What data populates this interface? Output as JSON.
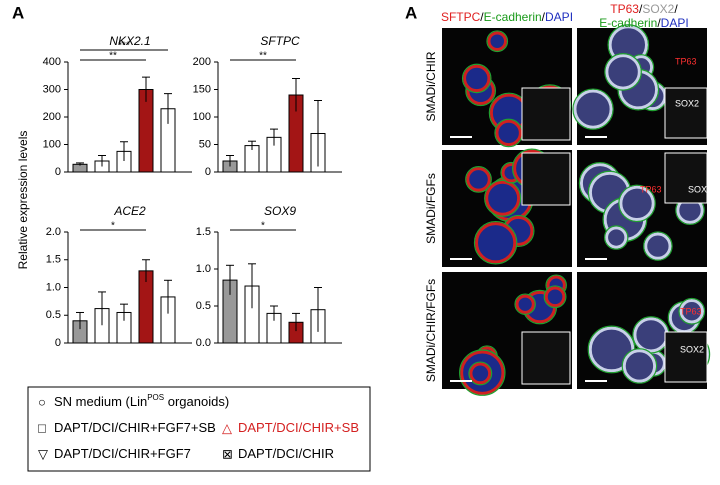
{
  "panel_letters": [
    "A",
    "A"
  ],
  "y_axis_label": "Relative expression levels",
  "chart_data": [
    {
      "type": "bar",
      "title": "NKX2.1",
      "categories": [
        null,
        null,
        null,
        null,
        null
      ],
      "values": [
        28,
        40,
        75,
        300,
        230
      ],
      "errors": [
        5,
        20,
        35,
        45,
        55
      ],
      "colors": [
        "#999999",
        "#ffffff",
        "#ffffff",
        "#a31515",
        "#ffffff"
      ],
      "ylim": [
        0,
        400
      ],
      "yticks": [
        0,
        100,
        200,
        300,
        400
      ],
      "significance": [
        {
          "text": "**",
          "from": 0,
          "to": 3
        },
        {
          "text": "***",
          "from": 0,
          "to": 4
        }
      ]
    },
    {
      "type": "bar",
      "title": "SFTPC",
      "categories": [
        null,
        null,
        null,
        null,
        null
      ],
      "values": [
        20,
        48,
        63,
        140,
        70
      ],
      "errors": [
        10,
        8,
        15,
        30,
        60
      ],
      "colors": [
        "#999999",
        "#ffffff",
        "#ffffff",
        "#a31515",
        "#ffffff"
      ],
      "ylim": [
        0,
        200
      ],
      "yticks": [
        0,
        50,
        100,
        150,
        200
      ],
      "significance": [
        {
          "text": "**",
          "from": 0,
          "to": 3
        }
      ]
    },
    {
      "type": "bar",
      "title": "ACE2",
      "categories": [
        null,
        null,
        null,
        null,
        null
      ],
      "values": [
        0.4,
        0.62,
        0.55,
        1.3,
        0.83
      ],
      "errors": [
        0.15,
        0.3,
        0.15,
        0.2,
        0.3
      ],
      "colors": [
        "#999999",
        "#ffffff",
        "#ffffff",
        "#a31515",
        "#ffffff"
      ],
      "ylim": [
        0,
        2
      ],
      "yticks": [
        0,
        0.5,
        {
          "value": 1,
          "label": "1.0"
        },
        1.5,
        {
          "value": 2,
          "label": "2.0"
        }
      ],
      "significance": [
        {
          "text": "*",
          "from": 0,
          "to": 3
        }
      ]
    },
    {
      "type": "bar",
      "title": "SOX9",
      "categories": [
        null,
        null,
        null,
        null,
        null
      ],
      "values": [
        0.85,
        0.77,
        0.4,
        0.28,
        0.45
      ],
      "errors": [
        0.2,
        0.3,
        0.1,
        0.12,
        0.3
      ],
      "colors": [
        "#999999",
        "#ffffff",
        "#ffffff",
        "#a31515",
        "#ffffff"
      ],
      "ylim": [
        0,
        1.5
      ],
      "yticks": [
        {
          "value": 0,
          "label": "0.0"
        },
        0.5,
        {
          "value": 1,
          "label": "1.0"
        },
        1.5
      ],
      "significance": [
        {
          "text": "*",
          "from": 0,
          "to": 3
        }
      ]
    }
  ],
  "legend": [
    {
      "symbol": "○",
      "parts": [
        "SN medium (Lin",
        "POS",
        " organoids)"
      ],
      "color": "#000000"
    },
    {
      "symbol": "□",
      "parts": [
        "DAPT/DCI/CHIR+FGF7+SB"
      ],
      "color": "#000000"
    },
    {
      "symbol": "△",
      "parts": [
        "DAPT/DCI/CHIR+SB"
      ],
      "color": "#d42020"
    },
    {
      "symbol": "▽",
      "parts": [
        "DAPT/DCI/CHIR+FGF7"
      ],
      "color": "#000000"
    },
    {
      "symbol": "⊠",
      "parts": [
        "DAPT/DCI/CHIR"
      ],
      "color": "#000000"
    }
  ],
  "image_headers": [
    [
      {
        "text": "SFTPC",
        "color": "#e02020"
      },
      {
        "text": "/",
        "color": "#000000"
      },
      {
        "text": "E-cadherin",
        "color": "#1a9a1a"
      },
      {
        "text": "/",
        "color": "#000000"
      },
      {
        "text": "DAPI",
        "color": "#1f2fbf"
      }
    ],
    [
      {
        "text": "TP63",
        "color": "#e02020"
      },
      {
        "text": "/",
        "color": "#000000"
      },
      {
        "text": "SOX2",
        "color": "#999999"
      },
      {
        "text": "/",
        "color": "#000000"
      }
    ],
    [
      {
        "text": "E-cadherin",
        "color": "#1a9a1a"
      },
      {
        "text": "/",
        "color": "#000000"
      },
      {
        "text": "DAPI",
        "color": "#1f2fbf"
      }
    ]
  ],
  "row_labels": [
    "SMADi/CHIR",
    "SMADi/FGFs",
    "SMADi/CHIR/FGFs"
  ],
  "inset_labels": [
    "TP63",
    "SOX2",
    "TP63",
    "SOX2",
    "TP63",
    "SOX2"
  ]
}
